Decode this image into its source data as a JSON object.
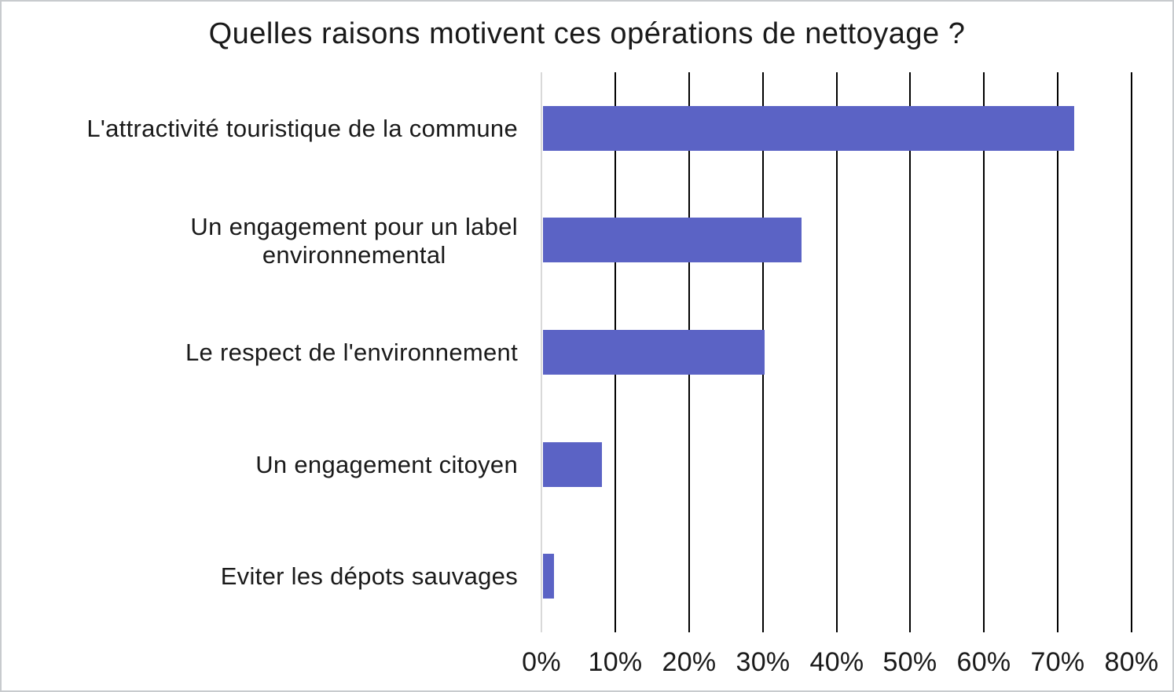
{
  "chart_data": {
    "type": "bar",
    "orientation": "horizontal",
    "title": "Quelles raisons motivent ces opérations de nettoyage ?",
    "categories": [
      "L'attractivité touristique de la commune",
      "Un engagement pour un label\nenvironnemental",
      "Le respect de l'environnement",
      "Un engagement citoyen",
      "Eviter les dépots sauvages"
    ],
    "values": [
      72,
      35,
      30,
      8,
      1.5
    ],
    "unit": "%",
    "xlabel": "",
    "ylabel": "",
    "xlim": [
      0,
      80
    ],
    "x_ticks": [
      0,
      10,
      20,
      30,
      40,
      50,
      60,
      70,
      80
    ],
    "x_tick_labels": [
      "0%",
      "10%",
      "20%",
      "30%",
      "40%",
      "50%",
      "60%",
      "70%",
      "80%"
    ],
    "grid": "vertical gridlines on",
    "legend": "none",
    "colors": {
      "bar": "#5B63C5",
      "gridline": "#000000",
      "zero_axis_line": "#D9D9D9",
      "text": "#1A1A1A",
      "background": "#FFFFFF",
      "frame_border": "#C8CBCE"
    }
  }
}
